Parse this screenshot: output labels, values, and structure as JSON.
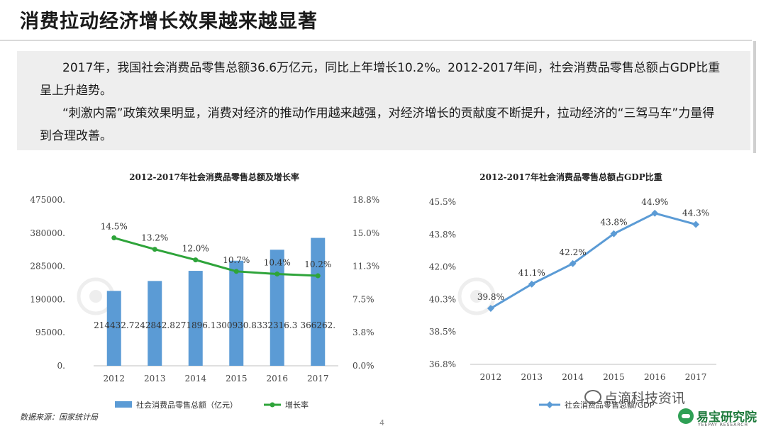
{
  "page": {
    "title": "消费拉动经济增长效果越来越显著",
    "paragraph1": "2017年，我国社会消费品零售总额36.6万亿元，同比上年增长10.2%。2012-2017年间，社会消费品零售总额占GDP比重呈上升趋势。",
    "paragraph2": "“刺激内需”政策效果明显，消费对经济的推动作用越来越强，对经济增长的贡献度不断提升，拉动经济的“三驾马车”力量得到合理改善。",
    "source": "数据来源：国家统计局",
    "page_number": "4",
    "watermark_wechat": "点滴科技资讯",
    "brand_name": "易宝研究院",
    "brand_sub": "YEEPAY RESEARCH"
  },
  "chart_data": [
    {
      "type": "bar",
      "title": "2012-2017年社会消费品零售总额及增长率",
      "categories": [
        "2012",
        "2013",
        "2014",
        "2015",
        "2016",
        "2017"
      ],
      "series": [
        {
          "name": "社会消费品零售总额（亿元）",
          "type": "bar",
          "axis": "left",
          "values": [
            214432.7,
            242842.8,
            271896.1,
            300930.8,
            332316.3,
            366262
          ],
          "labels": [
            "214432.7",
            "242842.8",
            "271896.1",
            "300930.8",
            "332316.3",
            "366262."
          ],
          "color": "#5b9bd5"
        },
        {
          "name": "增长率",
          "type": "line",
          "axis": "right",
          "values": [
            14.5,
            13.2,
            12.0,
            10.7,
            10.4,
            10.2
          ],
          "labels": [
            "14.5%",
            "13.2%",
            "12.0%",
            "10.7%",
            "10.4%",
            "10.2%"
          ],
          "color": "#2ea43a"
        }
      ],
      "left_axis": {
        "ylim": [
          0,
          475000
        ],
        "ticks": [
          "0.",
          "95000.",
          "190000.",
          "285000.",
          "380000.",
          "475000."
        ]
      },
      "right_axis": {
        "ylim": [
          0,
          18.8
        ],
        "ticks": [
          "0.0%",
          "3.8%",
          "7.5%",
          "11.3%",
          "15.0%",
          "18.8%"
        ]
      },
      "legend": "bottom"
    },
    {
      "type": "line",
      "title": "2012-2017年社会消费品零售总额占GDP比重",
      "categories": [
        "2012",
        "2013",
        "2014",
        "2015",
        "2016",
        "2017"
      ],
      "series": [
        {
          "name": "社会消费品零售总额/GDP",
          "values": [
            39.8,
            41.1,
            42.2,
            43.8,
            44.9,
            44.3
          ],
          "labels": [
            "39.8%",
            "41.1%",
            "42.2%",
            "43.8%",
            "44.9%",
            "44.3%"
          ],
          "color": "#5b9bd5"
        }
      ],
      "y_axis": {
        "ylim": [
          36.8,
          45.5
        ],
        "ticks": [
          "36.8%",
          "38.5%",
          "40.3%",
          "42.0%",
          "43.8%",
          "45.5%"
        ]
      },
      "legend": "bottom"
    }
  ]
}
